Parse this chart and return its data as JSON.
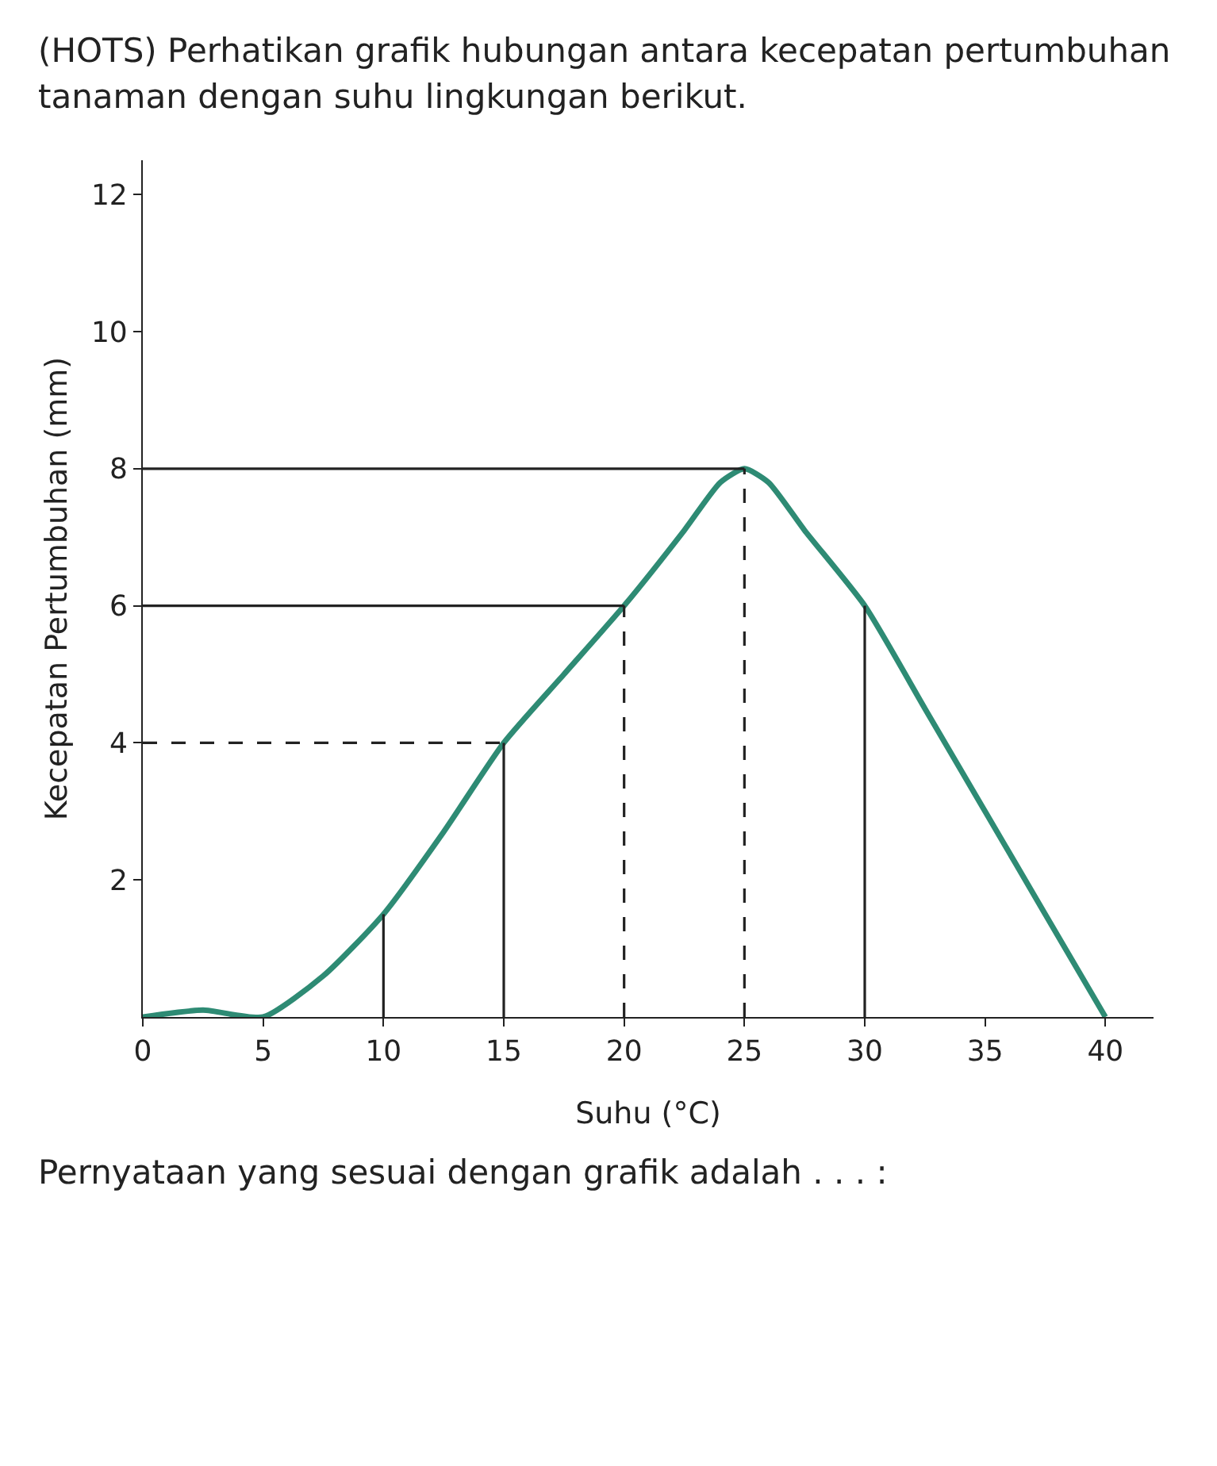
{
  "chart_data": {
    "type": "line",
    "title": "(HOTS) Perhatikan grafik hubungan antara kecepatan pertumbuhan tanaman dengan suhu lingkungan berikut.",
    "xlabel": "Suhu (°C)",
    "ylabel": "Kecepatan Pertumbuhan (mm)",
    "annotations": [
      "Pernyataan yang sesuai dengan grafik adalah . . . :"
    ],
    "xlim": [
      0,
      42
    ],
    "xticks": [
      0,
      5,
      10,
      15,
      20,
      25,
      30,
      35,
      40
    ],
    "ylim": [
      0,
      12.5
    ],
    "yticks": [
      2,
      4,
      6,
      8,
      10,
      12
    ],
    "grid": false,
    "marker": "none",
    "series": [
      {
        "color": "#2e8b74",
        "line_style": "solid",
        "x": [
          0,
          2.5,
          5,
          7.5,
          10,
          12.5,
          15,
          17.5,
          20,
          22.5,
          24,
          25,
          26,
          27.5,
          30,
          32.5,
          35,
          37.5,
          40
        ],
        "values": [
          0,
          0.1,
          0,
          0.6,
          1.5,
          2.7,
          4,
          5,
          6,
          7.1,
          7.8,
          8,
          7.8,
          7.1,
          6,
          4.5,
          3,
          1.5,
          0
        ]
      },
      {
        "color": "#222222",
        "line_style": "solid",
        "x": [
          10,
          10
        ],
        "values": [
          0,
          1.5
        ]
      },
      {
        "color": "#222222",
        "line_style": "solid",
        "x": [
          15,
          15
        ],
        "values": [
          0,
          4
        ]
      },
      {
        "color": "#222222",
        "line_style": "dashed",
        "x": [
          20,
          20
        ],
        "values": [
          0,
          6
        ]
      },
      {
        "color": "#222222",
        "line_style": "dashed",
        "x": [
          25,
          25
        ],
        "values": [
          0,
          8
        ]
      },
      {
        "color": "#222222",
        "line_style": "solid",
        "x": [
          30,
          30
        ],
        "values": [
          0,
          6
        ]
      },
      {
        "color": "#222222",
        "line_style": "dashed",
        "x": [
          0,
          15
        ],
        "values": [
          4,
          4
        ]
      },
      {
        "color": "#222222",
        "line_style": "solid",
        "x": [
          0,
          20
        ],
        "values": [
          6,
          6
        ]
      },
      {
        "color": "#222222",
        "line_style": "solid",
        "x": [
          0,
          25
        ],
        "values": [
          8,
          8
        ]
      }
    ]
  }
}
